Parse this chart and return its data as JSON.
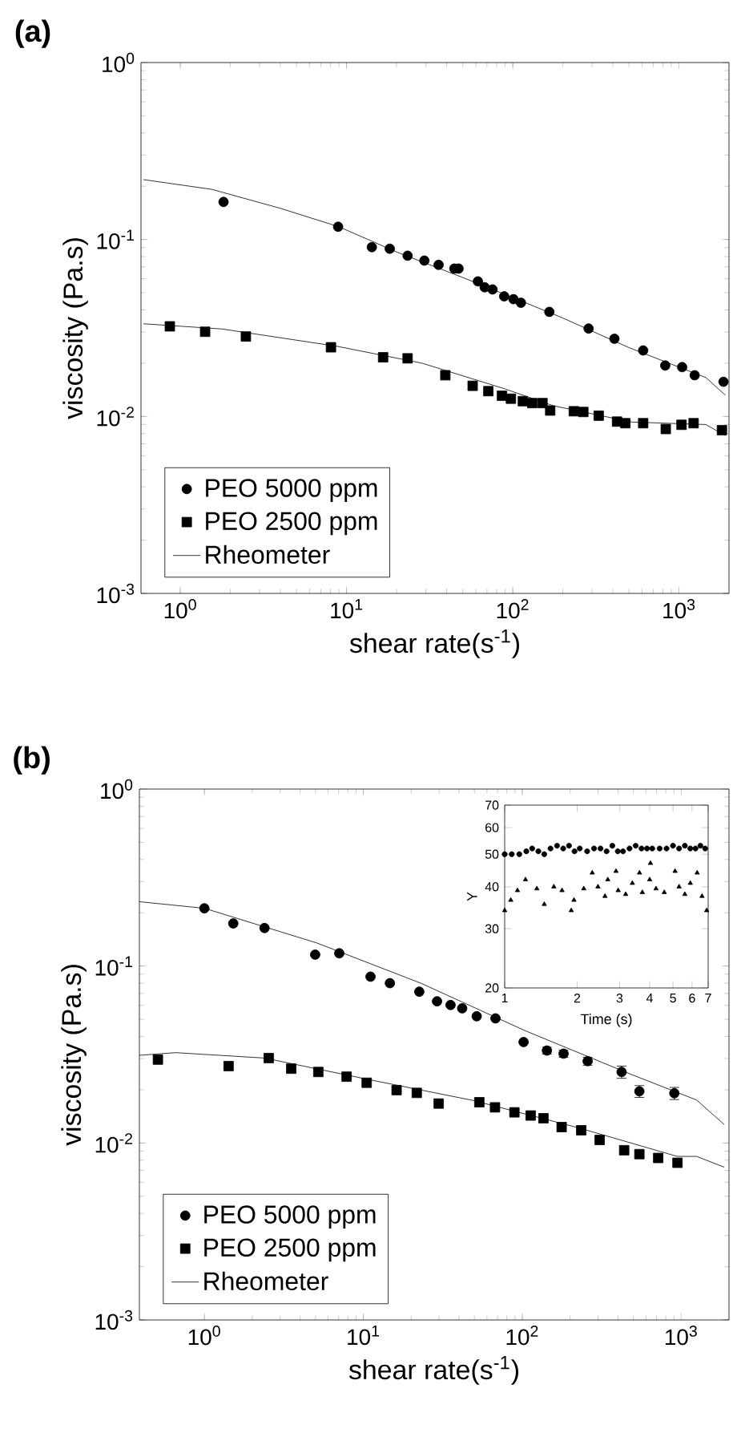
{
  "chart_data": [
    {
      "type": "scatter",
      "title": "(a)",
      "xlabel": "shear rate(s$^{-1}$)",
      "ylabel": "viscosity (Pa.s)",
      "log": "xy",
      "legend": "bottom left",
      "xlim": [
        0.58,
        2000
      ],
      "ylim": [
        0.001,
        1
      ],
      "xticks": [
        {
          "value": 1,
          "label": "10$^{0}$"
        },
        {
          "value": 10,
          "label": "10$^{1}$"
        },
        {
          "value": 100,
          "label": "10$^{2}$"
        },
        {
          "value": 1000,
          "label": "10$^{3}$"
        }
      ],
      "yticks": [
        {
          "value": 0.001,
          "label": "10$^{-3}$"
        },
        {
          "value": 0.01,
          "label": "10$^{-2}$"
        },
        {
          "value": 0.1,
          "label": "10$^{-1}$"
        },
        {
          "value": 1,
          "label": "10$^{0}$"
        }
      ],
      "series": [
        {
          "name": "PEO 5000 ppm",
          "color": "#000000",
          "marker": "circle",
          "x": [
            1.82,
            8.9,
            14.2,
            18.2,
            23.3,
            29.4,
            35.8,
            44.5,
            47.2,
            61.7,
            67.8,
            75.6,
            88.8,
            101,
            112,
            166,
            286,
            409,
            609,
            827,
            1045,
            1243,
            1853
          ],
          "values": [
            0.163,
            0.118,
            0.0905,
            0.0887,
            0.081,
            0.076,
            0.0719,
            0.0685,
            0.0685,
            0.058,
            0.0537,
            0.0522,
            0.0477,
            0.046,
            0.0439,
            0.039,
            0.0314,
            0.0275,
            0.0236,
            0.0194,
            0.019,
            0.0171,
            0.0157
          ]
        },
        {
          "name": "PEO 2500 ppm",
          "color": "#000000",
          "marker": "square",
          "x": [
            0.865,
            1.41,
            2.48,
            8.06,
            16.6,
            23.3,
            39.3,
            57.4,
            71.3,
            86.1,
            97.5,
            115,
            131,
            151,
            168,
            233,
            266,
            329,
            424,
            476,
            609,
            833,
            1036,
            1225,
            1814
          ],
          "values": [
            0.0323,
            0.0301,
            0.0283,
            0.0246,
            0.0216,
            0.0213,
            0.0171,
            0.0149,
            0.0139,
            0.0131,
            0.0126,
            0.0122,
            0.0119,
            0.0119,
            0.0108,
            0.0107,
            0.0106,
            0.0101,
            0.00935,
            0.00916,
            0.00916,
            0.00849,
            0.00897,
            0.00916,
            0.00837
          ]
        },
        {
          "name": "Rheometer",
          "type": "line",
          "color": "#000000",
          "x": [
            0.6,
            1.55,
            4,
            9,
            20,
            50,
            100,
            200,
            500,
            1000,
            1450,
            1900
          ],
          "values": [
            0.218,
            0.192,
            0.15,
            0.118,
            0.085,
            0.061,
            0.047,
            0.036,
            0.0245,
            0.019,
            0.0166,
            0.0132
          ]
        },
        {
          "type": "line",
          "color": "#000000",
          "x": [
            0.6,
            1.79,
            8.8,
            28.5,
            90,
            175,
            520,
            1450,
            1900
          ],
          "values": [
            0.0334,
            0.0312,
            0.0249,
            0.02,
            0.0143,
            0.0115,
            0.0093,
            0.009,
            0.0078
          ]
        }
      ]
    },
    {
      "type": "scatter",
      "title": "(b)",
      "xlabel": "shear rate(s$^{-1}$)",
      "ylabel": "viscosity (Pa.s)",
      "log": "xy",
      "legend": "bottom left",
      "xlim": [
        0.39,
        2000
      ],
      "ylim": [
        0.001,
        1
      ],
      "xticks": [
        {
          "value": 1,
          "label": "10$^{0}$"
        },
        {
          "value": 10,
          "label": "10$^{1}$"
        },
        {
          "value": 100,
          "label": "10$^{2}$"
        },
        {
          "value": 1000,
          "label": "10$^{3}$"
        }
      ],
      "yticks": [
        {
          "value": 0.001,
          "label": "10$^{-3}$"
        },
        {
          "value": 0.01,
          "label": "10$^{-2}$"
        },
        {
          "value": 0.1,
          "label": "10$^{-1}$"
        },
        {
          "value": 1,
          "label": "10$^{0}$"
        }
      ],
      "series": [
        {
          "name": "PEO 5000 ppm",
          "color": "#000000",
          "marker": "circle",
          "x": [
            1.0,
            1.52,
            2.39,
            4.98,
            7.06,
            11.1,
            14.7,
            22.5,
            29.1,
            35.4,
            41.9,
            51.7,
            67.9,
            102,
            143,
            182,
            258,
            422,
            546,
            906
          ],
          "values": [
            0.212,
            0.174,
            0.164,
            0.116,
            0.118,
            0.0871,
            0.08,
            0.0716,
            0.0632,
            0.0602,
            0.0577,
            0.052,
            0.0506,
            0.0372,
            0.0333,
            0.032,
            0.029,
            0.0252,
            0.0196,
            0.0191
          ],
          "errors": [
            null,
            null,
            null,
            null,
            null,
            null,
            null,
            null,
            null,
            null,
            null,
            null,
            null,
            null,
            0.0015,
            0.0015,
            0.0015,
            0.002,
            0.0015,
            0.0015
          ]
        },
        {
          "name": "PEO 2500 ppm",
          "color": "#000000",
          "marker": "square",
          "x": [
            0.51,
            1.42,
            2.54,
            3.52,
            5.21,
            7.85,
            10.5,
            16.2,
            21.7,
            29.8,
            53.7,
            67.4,
            89.3,
            113,
            136,
            177,
            235,
            307,
            438,
            546,
            717,
            948
          ],
          "values": [
            0.0296,
            0.0272,
            0.0302,
            0.0263,
            0.0252,
            0.0237,
            0.0219,
            0.0199,
            0.0192,
            0.0167,
            0.017,
            0.0159,
            0.0149,
            0.0143,
            0.0138,
            0.0123,
            0.0118,
            0.0104,
            0.0091,
            0.00865,
            0.00823,
            0.00773
          ]
        },
        {
          "name": "Rheometer",
          "type": "line",
          "color": "#000000",
          "x": [
            0.39,
            1,
            5.1,
            23,
            105,
            480,
            1250,
            1870
          ],
          "values": [
            0.231,
            0.212,
            0.135,
            0.08,
            0.043,
            0.0245,
            0.0175,
            0.0127
          ]
        },
        {
          "type": "line",
          "color": "#000000",
          "x": [
            0.39,
            0.66,
            2.39,
            10.9,
            49,
            225,
            945,
            1250,
            1870
          ],
          "values": [
            0.0313,
            0.0324,
            0.0302,
            0.0228,
            0.0174,
            0.0122,
            0.0084,
            0.0084,
            0.0073
          ]
        }
      ]
    },
    {
      "type": "scatter",
      "xlabel": "Time (s)",
      "ylabel": "Y",
      "log": "xy",
      "xlim": [
        1,
        7
      ],
      "ylim": [
        20,
        70
      ],
      "xticks": [
        1,
        2,
        3,
        4,
        5,
        6,
        7
      ],
      "yticks": [
        20,
        30,
        40,
        50,
        60,
        70
      ],
      "series": [
        {
          "color": "#000000",
          "marker": "circle",
          "x": [
            1.0,
            1.07,
            1.15,
            1.23,
            1.3,
            1.38,
            1.46,
            1.55,
            1.65,
            1.75,
            1.85,
            1.95,
            2.05,
            2.2,
            2.35,
            2.5,
            2.65,
            2.8,
            2.95,
            3.1,
            3.3,
            3.5,
            3.7,
            3.9,
            4.1,
            4.4,
            4.7,
            5.0,
            5.3,
            5.6,
            5.9,
            6.2,
            6.5,
            6.8
          ],
          "values": [
            50,
            50,
            50,
            51,
            52,
            51,
            50,
            52,
            53,
            52,
            53,
            51,
            52,
            51,
            52,
            52,
            51,
            53,
            51,
            51,
            52,
            53,
            52,
            52,
            52,
            52,
            52,
            53,
            52,
            53,
            52,
            52,
            53,
            52
          ]
        },
        {
          "color": "#000000",
          "marker": "triangle",
          "x": [
            1.0,
            1.06,
            1.13,
            1.22,
            1.36,
            1.46,
            1.6,
            1.73,
            1.89,
            1.94,
            2.13,
            2.31,
            2.44,
            2.61,
            2.68,
            2.9,
            2.96,
            3.18,
            3.39,
            3.63,
            3.73,
            4.0,
            4.03,
            4.25,
            4.6,
            5.1,
            5.3,
            5.6,
            5.9,
            6.3,
            6.6,
            6.9
          ],
          "values": [
            34,
            36.5,
            39,
            42,
            39.5,
            35.5,
            40,
            39,
            34,
            36.5,
            39.5,
            44,
            40,
            37.5,
            42,
            44.5,
            39,
            38,
            41,
            44,
            38.5,
            42,
            47,
            39.5,
            38.5,
            44.5,
            40,
            38,
            41,
            44,
            37.5,
            34
          ]
        }
      ]
    }
  ]
}
